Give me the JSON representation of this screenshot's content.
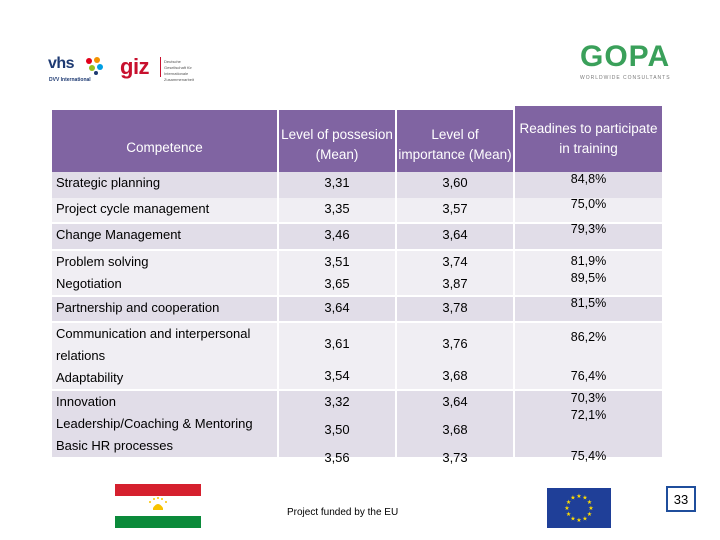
{
  "logos": {
    "vhs_text": "vhs",
    "vhs_subtext": "DVV International",
    "giz_text": "giz",
    "giz_subtext": "Deutsche Gesellschaft für Internationale Zusammenarbeit",
    "gopa_text": "GOPA",
    "gopa_subtext": "WORLDWIDE CONSULTANTS"
  },
  "table": {
    "headers": {
      "competence": "Competence",
      "possession": "Level of possesion (Mean)",
      "importance": "Level of importance (Mean)",
      "readiness": "Readines to participate in training"
    },
    "rows": [
      {
        "competence": [
          "Strategic planning"
        ],
        "possession": [
          "3,31"
        ],
        "importance": [
          "3,60"
        ],
        "readiness": [
          "84,8%"
        ]
      },
      {
        "competence": [
          "Project cycle management"
        ],
        "possession": [
          "3,35"
        ],
        "importance": [
          "3,57"
        ],
        "readiness": [
          "75,0%"
        ]
      },
      {
        "competence": [
          "Change Management"
        ],
        "possession": [
          "3,46"
        ],
        "importance": [
          "3,64"
        ],
        "readiness": [
          "79,3%"
        ]
      },
      {
        "competence": [
          "Problem solving",
          "Negotiation"
        ],
        "possession": [
          "3,51",
          "3,65"
        ],
        "importance": [
          "3,74",
          "3,87"
        ],
        "readiness": [
          "81,9%",
          "89,5%"
        ]
      },
      {
        "competence": [
          "Partnership and cooperation"
        ],
        "possession": [
          "3,64"
        ],
        "importance": [
          "3,78"
        ],
        "readiness": [
          "81,5%"
        ]
      },
      {
        "competence": [
          "Communication and interpersonal relations",
          "Adaptability"
        ],
        "possession": [
          "3,61",
          "3,54"
        ],
        "importance": [
          "3,76",
          "3,68"
        ],
        "readiness": [
          "86,2%",
          "76,4%"
        ]
      },
      {
        "competence": [
          "Innovation",
          "Leadership/Coaching & Mentoring",
          "Basic HR processes"
        ],
        "possession": [
          "3,32",
          "3,50",
          "3,56"
        ],
        "importance": [
          "3,64",
          "3,68",
          "3,73"
        ],
        "readiness": [
          "70,3%",
          "72,1%",
          "75,4%"
        ]
      }
    ]
  },
  "footer": {
    "funded_text": "Project funded by the EU",
    "page_number": "33"
  },
  "colors": {
    "header_bg": "#8064a2",
    "row_dark": "#e1dde8",
    "row_light": "#f0eef3",
    "flag_red": "#d5202e",
    "flag_green": "#0b8a3a",
    "eu_blue": "#1f3f98",
    "eu_star": "#ffdd00"
  }
}
